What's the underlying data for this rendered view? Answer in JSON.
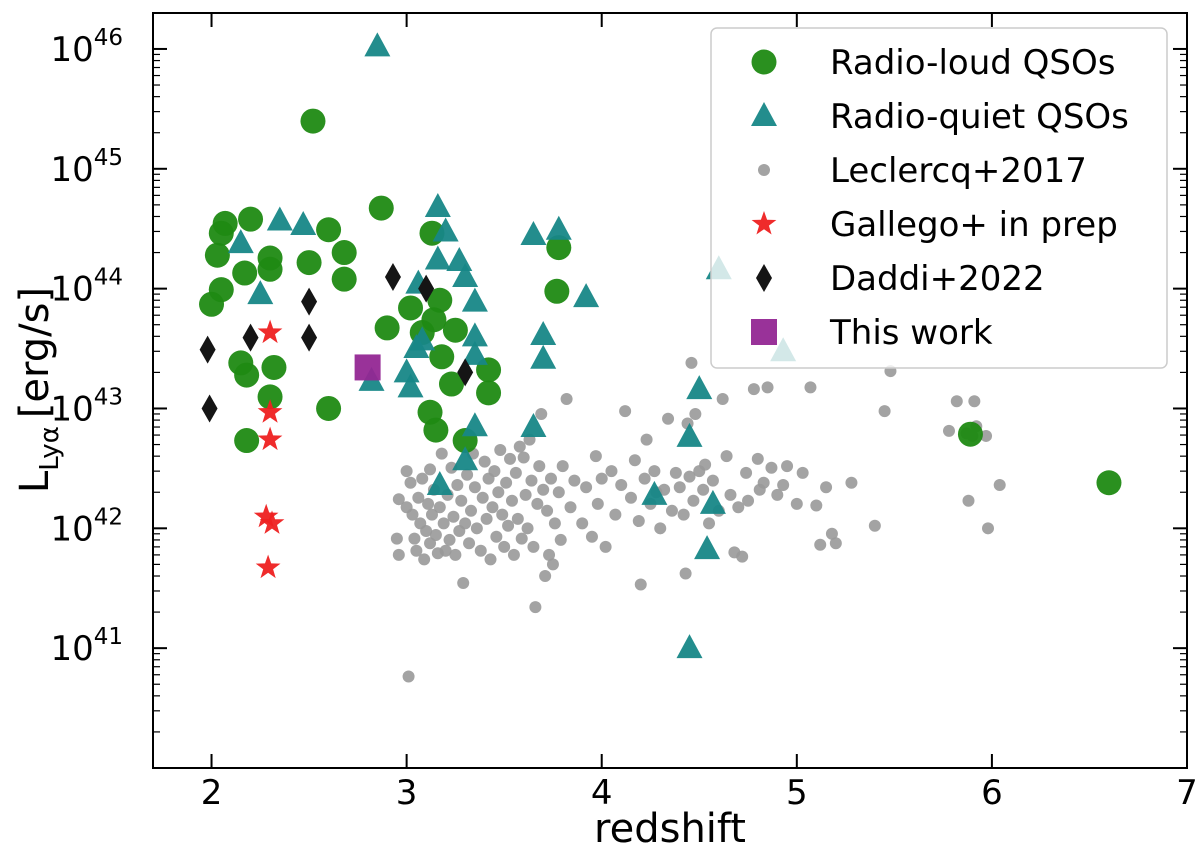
{
  "chart_data": {
    "type": "scatter",
    "xlabel": "redshift",
    "ylabel_main": "L",
    "ylabel_sub": "Lyα",
    "ylabel_unit": "[erg/s]",
    "xlim": [
      1.7,
      7.0
    ],
    "ylim_log10": [
      40.0,
      46.3
    ],
    "yscale": "log",
    "x_ticks": [
      2,
      3,
      4,
      5,
      6,
      7
    ],
    "x_tick_labels": [
      "2",
      "3",
      "4",
      "5",
      "6",
      "7"
    ],
    "y_tick_exponents": [
      41,
      42,
      43,
      44,
      45,
      46
    ],
    "y_tick_base": "10",
    "y_tick_labels": [
      "41",
      "42",
      "43",
      "44",
      "45",
      "46"
    ],
    "legend_position": "top-right",
    "series": [
      {
        "name": "Radio-loud QSOs",
        "marker": "circle",
        "color": "#1f8a13",
        "points": [
          [
            2.0,
            7.4e+43
          ],
          [
            2.03,
            1.9e+44
          ],
          [
            2.05,
            2.9e+44
          ],
          [
            2.07,
            3.5e+44
          ],
          [
            2.05,
            9.8e+43
          ],
          [
            2.15,
            2.4e+43
          ],
          [
            2.18,
            5.4e+42
          ],
          [
            2.18,
            1.9e+43
          ],
          [
            2.2,
            3.8e+44
          ],
          [
            2.17,
            1.35e+44
          ],
          [
            2.3,
            1.8e+44
          ],
          [
            2.3,
            1.45e+44
          ],
          [
            2.32,
            2.2e+43
          ],
          [
            2.3,
            1.25e+43
          ],
          [
            2.52,
            2.5e+45
          ],
          [
            2.5,
            1.65e+44
          ],
          [
            2.6,
            3.1e+44
          ],
          [
            2.6,
            1e+43
          ],
          [
            2.68,
            2e+44
          ],
          [
            2.68,
            1.2e+44
          ],
          [
            2.87,
            4.7e+44
          ],
          [
            2.9,
            4.7e+43
          ],
          [
            3.02,
            6.9e+43
          ],
          [
            3.08,
            4.3e+43
          ],
          [
            3.13,
            2.9e+44
          ],
          [
            3.14,
            5.5e+43
          ],
          [
            3.17,
            8e+43
          ],
          [
            3.18,
            2.7e+43
          ],
          [
            3.12,
            9.3e+42
          ],
          [
            3.15,
            6.6e+42
          ],
          [
            3.25,
            4.5e+43
          ],
          [
            3.23,
            1.6e+43
          ],
          [
            3.3,
            5.4e+42
          ],
          [
            3.42,
            2.1e+43
          ],
          [
            3.42,
            1.35e+43
          ],
          [
            3.78,
            2.2e+44
          ],
          [
            3.77,
            9.5e+43
          ],
          [
            5.89,
            6.1e+42
          ],
          [
            6.6,
            2.4e+42
          ]
        ]
      },
      {
        "name": "Radio-quiet QSOs",
        "marker": "triangle",
        "color": "#178787",
        "points": [
          [
            2.15,
            2.4e+44
          ],
          [
            2.25,
            9e+43
          ],
          [
            2.35,
            3.7e+44
          ],
          [
            2.47,
            3.4e+44
          ],
          [
            2.85,
            1.05e+46
          ],
          [
            2.82,
            1.7e+43
          ],
          [
            3.0,
            2e+43
          ],
          [
            3.02,
            1.5e+43
          ],
          [
            3.05,
            3.2e+43
          ],
          [
            3.06,
            1.1e+44
          ],
          [
            3.08,
            3.7e+43
          ],
          [
            3.16,
            4.8e+44
          ],
          [
            3.16,
            1.75e+44
          ],
          [
            3.2,
            3e+44
          ],
          [
            3.17,
            2.3e+42
          ],
          [
            3.27,
            1.7e+44
          ],
          [
            3.3,
            1.25e+44
          ],
          [
            3.35,
            7.8e+43
          ],
          [
            3.35,
            4e+43
          ],
          [
            3.35,
            2.8e+43
          ],
          [
            3.35,
            7.1e+42
          ],
          [
            3.3,
            3.7e+42
          ],
          [
            3.65,
            2.8e+44
          ],
          [
            3.78,
            3.1e+44
          ],
          [
            3.7,
            4.1e+43
          ],
          [
            3.7,
            2.6e+43
          ],
          [
            3.65,
            7e+42
          ],
          [
            3.92,
            8.5e+43
          ],
          [
            4.27,
            1.9e+42
          ],
          [
            4.45,
            1e+41
          ],
          [
            4.45,
            5.8e+42
          ],
          [
            4.5,
            1.45e+43
          ],
          [
            4.54,
            6.7e+41
          ],
          [
            4.57,
            1.6e+42
          ],
          [
            4.6,
            1.45e+44
          ],
          [
            4.93,
            3e+43
          ]
        ]
      },
      {
        "name": "Leclercq+2017",
        "marker": "dot",
        "color": "#999999",
        "points": [
          [
            2.95,
            8.2e+41
          ],
          [
            2.96,
            6e+41
          ],
          [
            2.96,
            1.75e+42
          ],
          [
            3.0,
            1.5e+42
          ],
          [
            3.0,
            3e+42
          ],
          [
            3.01,
            5.8e+40
          ],
          [
            3.02,
            2.4e+42
          ],
          [
            3.03,
            1.3e+42
          ],
          [
            3.04,
            8.2e+41
          ],
          [
            3.05,
            6.5e+41
          ],
          [
            3.06,
            1.8e+42
          ],
          [
            3.07,
            1.1e+42
          ],
          [
            3.08,
            2.6e+42
          ],
          [
            3.09,
            5.5e+41
          ],
          [
            3.1,
            9.5e+41
          ],
          [
            3.11,
            1.6e+42
          ],
          [
            3.12,
            3.1e+42
          ],
          [
            3.12,
            7.5e+41
          ],
          [
            3.13,
            1.3e+42
          ],
          [
            3.14,
            2.1e+42
          ],
          [
            3.15,
            8.8e+41
          ],
          [
            3.16,
            6.2e+41
          ],
          [
            3.17,
            1.5e+42
          ],
          [
            3.18,
            4.2e+42
          ],
          [
            3.19,
            1.1e+42
          ],
          [
            3.2,
            6.5e+41
          ],
          [
            3.21,
            1.9e+42
          ],
          [
            3.22,
            8e+41
          ],
          [
            3.23,
            3.2e+42
          ],
          [
            3.24,
            1.25e+42
          ],
          [
            3.25,
            6e+41
          ],
          [
            3.26,
            2.3e+42
          ],
          [
            3.27,
            9.5e+41
          ],
          [
            3.28,
            1.7e+42
          ],
          [
            3.29,
            3.5e+41
          ],
          [
            3.3,
            1.1e+42
          ],
          [
            3.31,
            2.8e+42
          ],
          [
            3.32,
            7.5e+41
          ],
          [
            3.33,
            1.4e+42
          ],
          [
            3.34,
            4.2e+42
          ],
          [
            3.35,
            2.2e+42
          ],
          [
            3.36,
            1e+42
          ],
          [
            3.38,
            6.5e+41
          ],
          [
            3.39,
            1.8e+42
          ],
          [
            3.4,
            3.6e+42
          ],
          [
            3.41,
            1.2e+42
          ],
          [
            3.42,
            2.6e+42
          ],
          [
            3.43,
            5.5e+41
          ],
          [
            3.44,
            1.5e+42
          ],
          [
            3.45,
            3e+42
          ],
          [
            3.46,
            8.5e+41
          ],
          [
            3.47,
            2e+42
          ],
          [
            3.48,
            4.5e+42
          ],
          [
            3.49,
            1.3e+42
          ],
          [
            3.5,
            7e+41
          ],
          [
            3.51,
            2.4e+42
          ],
          [
            3.52,
            1.05e+42
          ],
          [
            3.53,
            3.8e+42
          ],
          [
            3.54,
            1.7e+42
          ],
          [
            3.55,
            6e+41
          ],
          [
            3.56,
            2.9e+42
          ],
          [
            3.57,
            1.2e+42
          ],
          [
            3.58,
            4.8e+42
          ],
          [
            3.59,
            8.2e+41
          ],
          [
            3.6,
            3.9e+42
          ],
          [
            3.61,
            1.9e+42
          ],
          [
            3.62,
            1e+42
          ],
          [
            3.63,
            5.5e+42
          ],
          [
            3.64,
            2.5e+42
          ],
          [
            3.65,
            7e+41
          ],
          [
            3.66,
            2.2e+41
          ],
          [
            3.67,
            1.6e+42
          ],
          [
            3.68,
            3.3e+42
          ],
          [
            3.69,
            9e+42
          ],
          [
            3.7,
            2.1e+42
          ],
          [
            3.71,
            4e+41
          ],
          [
            3.72,
            1.4e+42
          ],
          [
            3.73,
            6e+41
          ],
          [
            3.74,
            2.6e+42
          ],
          [
            3.75,
            5e+41
          ],
          [
            3.76,
            1.1e+42
          ],
          [
            3.78,
            2e+42
          ],
          [
            3.79,
            8e+41
          ],
          [
            3.8,
            3.3e+42
          ],
          [
            3.82,
            1.2e+43
          ],
          [
            3.84,
            1.5e+42
          ],
          [
            3.86,
            2.5e+42
          ],
          [
            3.9,
            1.1e+42
          ],
          [
            3.92,
            2.2e+42
          ],
          [
            3.95,
            8.5e+41
          ],
          [
            3.97,
            4e+42
          ],
          [
            3.98,
            1.6e+42
          ],
          [
            4.0,
            2.6e+42
          ],
          [
            4.02,
            7e+41
          ],
          [
            4.05,
            3e+42
          ],
          [
            4.07,
            1.3e+42
          ],
          [
            4.1,
            2.3e+42
          ],
          [
            4.12,
            9.5e+42
          ],
          [
            4.15,
            1.8e+42
          ],
          [
            4.17,
            3.7e+42
          ],
          [
            4.19,
            1.15e+42
          ],
          [
            4.2,
            3.4e+41
          ],
          [
            4.22,
            2.6e+42
          ],
          [
            4.23,
            5.5e+42
          ],
          [
            4.25,
            1.6e+42
          ],
          [
            4.27,
            3e+42
          ],
          [
            4.28,
            2e+42
          ],
          [
            4.3,
            1e+42
          ],
          [
            4.32,
            2.1e+42
          ],
          [
            4.34,
            8.2e+42
          ],
          [
            4.36,
            1.4e+42
          ],
          [
            4.38,
            2.9e+42
          ],
          [
            4.4,
            2.2e+42
          ],
          [
            4.42,
            1.3e+42
          ],
          [
            4.43,
            4.2e+41
          ],
          [
            4.44,
            7.5e+42
          ],
          [
            4.45,
            2.7e+42
          ],
          [
            4.46,
            2.4e+43
          ],
          [
            4.47,
            1.7e+42
          ],
          [
            4.48,
            9e+42
          ],
          [
            4.5,
            3e+42
          ],
          [
            4.52,
            2.1e+42
          ],
          [
            4.53,
            3.4e+42
          ],
          [
            4.55,
            1.1e+42
          ],
          [
            4.57,
            2.5e+42
          ],
          [
            4.6,
            1.4e+42
          ],
          [
            4.62,
            1.2e+43
          ],
          [
            4.64,
            4e+42
          ],
          [
            4.66,
            1.9e+42
          ],
          [
            4.68,
            6.3e+41
          ],
          [
            4.7,
            1.5e+42
          ],
          [
            4.72,
            5.8e+41
          ],
          [
            4.74,
            2.9e+42
          ],
          [
            4.75,
            1.7e+42
          ],
          [
            4.78,
            1.45e+43
          ],
          [
            4.8,
            3.8e+42
          ],
          [
            4.81,
            2.1e+42
          ],
          [
            4.83,
            2.4e+42
          ],
          [
            4.85,
            1.5e+43
          ],
          [
            4.87,
            3.2e+42
          ],
          [
            4.9,
            1.9e+42
          ],
          [
            4.93,
            2.3e+42
          ],
          [
            4.95,
            3.3e+42
          ],
          [
            5.0,
            1.6e+42
          ],
          [
            5.03,
            2.9e+42
          ],
          [
            5.07,
            1.5e+43
          ],
          [
            5.1,
            1.55e+42
          ],
          [
            5.12,
            7.3e+41
          ],
          [
            5.15,
            2.2e+42
          ],
          [
            5.18,
            9e+41
          ],
          [
            5.2,
            7.5e+41
          ],
          [
            5.28,
            2.4e+42
          ],
          [
            5.4,
            1.05e+42
          ],
          [
            5.45,
            9.5e+42
          ],
          [
            5.48,
            2.05e+43
          ],
          [
            5.78,
            6.5e+42
          ],
          [
            5.82,
            1.15e+43
          ],
          [
            5.87,
            6.2e+42
          ],
          [
            5.88,
            1.7e+42
          ],
          [
            5.9,
            5.9e+42
          ],
          [
            5.91,
            1.15e+43
          ],
          [
            5.92,
            7.1e+42
          ],
          [
            5.97,
            5.9e+42
          ],
          [
            5.98,
            1e+42
          ],
          [
            6.04,
            2.3e+42
          ]
        ]
      },
      {
        "name": "Gallego+ in prep",
        "marker": "star",
        "color": "#ee2020",
        "points": [
          [
            2.3,
            4.3e+43
          ],
          [
            2.3,
            9.3e+42
          ],
          [
            2.3,
            5.5e+42
          ],
          [
            2.28,
            1.25e+42
          ],
          [
            2.31,
            1.1e+42
          ],
          [
            2.29,
            4.7e+41
          ]
        ]
      },
      {
        "name": "Daddi+2022",
        "marker": "diamond",
        "color": "#151515",
        "points": [
          [
            1.98,
            3.1e+43
          ],
          [
            1.99,
            1e+43
          ],
          [
            2.2,
            3.9e+43
          ],
          [
            2.5,
            7.8e+43
          ],
          [
            2.5,
            3.9e+43
          ],
          [
            2.93,
            1.25e+44
          ],
          [
            3.1,
            1e+44
          ],
          [
            3.3,
            2e+43
          ]
        ]
      },
      {
        "name": "This work",
        "marker": "square",
        "color": "#932793",
        "points": [
          [
            2.8,
            2.2e+43
          ]
        ]
      }
    ]
  }
}
